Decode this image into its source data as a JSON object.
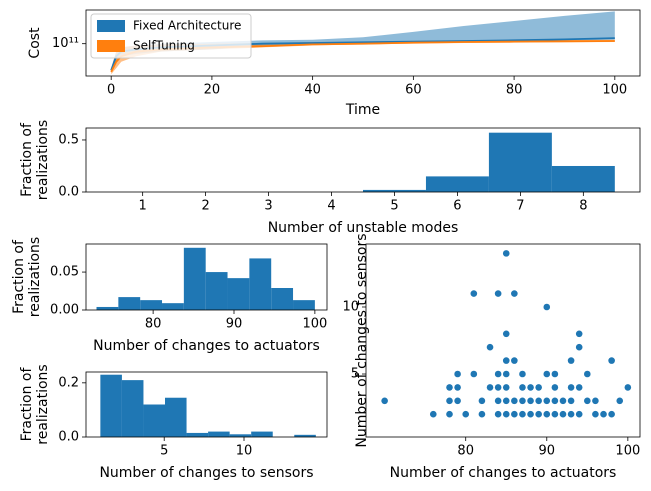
{
  "chart_data": [
    {
      "type": "line",
      "xlabel": "Time",
      "ylabel": "Cost",
      "ylog": true,
      "legend": "upper left",
      "x": [
        0,
        1,
        2,
        5,
        10,
        20,
        30,
        40,
        50,
        60,
        70,
        80,
        90,
        100
      ],
      "series": [
        {
          "name": "Fixed Architecture",
          "color": "#1f77b4",
          "values": [
            47000000000.0,
            70000000000.0,
            80000000000.0,
            85000000000.0,
            90000000000.0,
            95000000000.0,
            100000000000.0,
            102000000000.0,
            104000000000.0,
            106000000000.0,
            108000000000.0,
            110000000000.0,
            113000000000.0,
            117000000000.0
          ],
          "upper": [
            50000000000.0,
            80000000000.0,
            90000000000.0,
            95000000000.0,
            100000000000.0,
            105000000000.0,
            110000000000.0,
            112000000000.0,
            120000000000.0,
            140000000000.0,
            165000000000.0,
            190000000000.0,
            220000000000.0,
            250000000000.0
          ],
          "lower": [
            45000000000.0,
            60000000000.0,
            70000000000.0,
            75000000000.0,
            80000000000.0,
            85000000000.0,
            95000000000.0,
            100000000000.0,
            102000000000.0,
            104000000000.0,
            106000000000.0,
            108000000000.0,
            110000000000.0,
            112000000000.0
          ]
        },
        {
          "name": "SelfTuning",
          "color": "#ff7f0e",
          "values": [
            45000000000.0,
            60000000000.0,
            70000000000.0,
            80000000000.0,
            85000000000.0,
            90000000000.0,
            93000000000.0,
            98000000000.0,
            100000000000.0,
            103000000000.0,
            105000000000.0,
            106000000000.0,
            107000000000.0,
            108000000000.0
          ],
          "upper": [
            50000000000.0,
            80000000000.0,
            90000000000.0,
            95000000000.0,
            98000000000.0,
            100000000000.0,
            102000000000.0,
            105000000000.0,
            106000000000.0,
            108000000000.0,
            110000000000.0,
            110000000000.0,
            111000000000.0,
            112000000000.0
          ],
          "lower": [
            42000000000.0,
            50000000000.0,
            60000000000.0,
            70000000000.0,
            80000000000.0,
            85000000000.0,
            90000000000.0,
            95000000000.0,
            98000000000.0,
            100000000000.0,
            102000000000.0,
            103000000000.0,
            104000000000.0,
            105000000000.0
          ]
        }
      ],
      "xlim": [
        -5,
        105
      ],
      "xticks": [
        0,
        20,
        40,
        60,
        80,
        100
      ],
      "ylim": [
        40000000000.0,
        260000000000.0
      ],
      "yticks": [
        {
          "value": 100000000000.0,
          "label": "10¹¹"
        }
      ]
    },
    {
      "type": "histogram",
      "xlabel": "Number of unstable modes",
      "ylabel": [
        "Fraction of",
        "realizations"
      ],
      "color": "#1f77b4",
      "bins": [
        0.5,
        1.5,
        2.5,
        3.5,
        4.5,
        5.5,
        6.5,
        7.5,
        8.5
      ],
      "values": [
        0,
        0,
        0,
        0,
        0.02,
        0.15,
        0.57,
        0.25
      ],
      "xlim": [
        0.1,
        8.9
      ],
      "xticks": [
        1,
        2,
        3,
        4,
        5,
        6,
        7,
        8
      ],
      "ylim": [
        0,
        0.615
      ],
      "yticks": [
        {
          "value": 0,
          "label": "0.0"
        },
        0.5
      ]
    },
    {
      "type": "histogram",
      "xlabel": "Number of changes to actuators",
      "ylabel": [
        "Fraction of",
        "realizations"
      ],
      "color": "#1f77b4",
      "bins": [
        73,
        75.7,
        78.4,
        81.1,
        83.8,
        86.5,
        89.2,
        91.9,
        94.6,
        97.3,
        100
      ],
      "values": [
        0.004,
        0.017,
        0.013,
        0.009,
        0.082,
        0.05,
        0.042,
        0.068,
        0.029,
        0.013
      ],
      "xlim": [
        71.7,
        101.5
      ],
      "xticks": [
        80,
        90,
        100
      ],
      "ylim": [
        0,
        0.087
      ],
      "yticks": [
        {
          "value": 0,
          "label": "0.00"
        },
        0.05
      ]
    },
    {
      "type": "histogram",
      "xlabel": "Number of changes to sensors",
      "ylabel": [
        "Fraction of",
        "realizations"
      ],
      "color": "#1f77b4",
      "bins": [
        1,
        2.35,
        3.7,
        5.05,
        6.4,
        7.75,
        9.1,
        10.45,
        11.8,
        13.15,
        14.5
      ],
      "values": [
        0.23,
        0.21,
        0.12,
        0.145,
        0.015,
        0.02,
        0.01,
        0.02,
        0,
        0.008
      ],
      "xlim": [
        0.1,
        15.2
      ],
      "xticks": [
        5,
        10
      ],
      "ylim": [
        0,
        0.24
      ],
      "yticks": [
        {
          "value": 0,
          "label": "0.0"
        },
        0.2
      ]
    },
    {
      "type": "scatter",
      "xlabel": "Number of changes to actuators",
      "ylabel": "Number of changes to sensors",
      "color": "#1f77b4",
      "x": [
        70,
        76,
        78,
        78,
        78,
        79,
        79,
        79,
        80,
        81,
        81,
        82,
        82,
        83,
        83,
        84,
        84,
        84,
        84,
        84,
        85,
        85,
        85,
        85,
        85,
        85,
        85,
        86,
        86,
        86,
        86,
        87,
        87,
        87,
        87,
        88,
        88,
        88,
        89,
        89,
        89,
        90,
        90,
        90,
        90,
        91,
        91,
        91,
        91,
        92,
        92,
        93,
        93,
        93,
        93,
        94,
        94,
        94,
        94,
        95,
        95,
        96,
        96,
        97,
        98,
        98,
        99,
        100
      ],
      "y": [
        3,
        2,
        2,
        3,
        4,
        4,
        5,
        3,
        2,
        11,
        5,
        3,
        2,
        4,
        7,
        11,
        5,
        4,
        3,
        2,
        14,
        8,
        6,
        5,
        4,
        3,
        2,
        11,
        6,
        3,
        2,
        5,
        4,
        3,
        2,
        4,
        3,
        2,
        4,
        3,
        2,
        10,
        5,
        3,
        2,
        5,
        4,
        3,
        2,
        3,
        2,
        6,
        4,
        3,
        2,
        8,
        7,
        4,
        2,
        5,
        3,
        3,
        2,
        2,
        6,
        2,
        3,
        4
      ],
      "xlim": [
        67.7,
        101.5
      ],
      "xticks": [
        80,
        90,
        100
      ],
      "ylim": [
        0.3,
        14.7
      ],
      "yticks": [
        5,
        10
      ]
    }
  ]
}
